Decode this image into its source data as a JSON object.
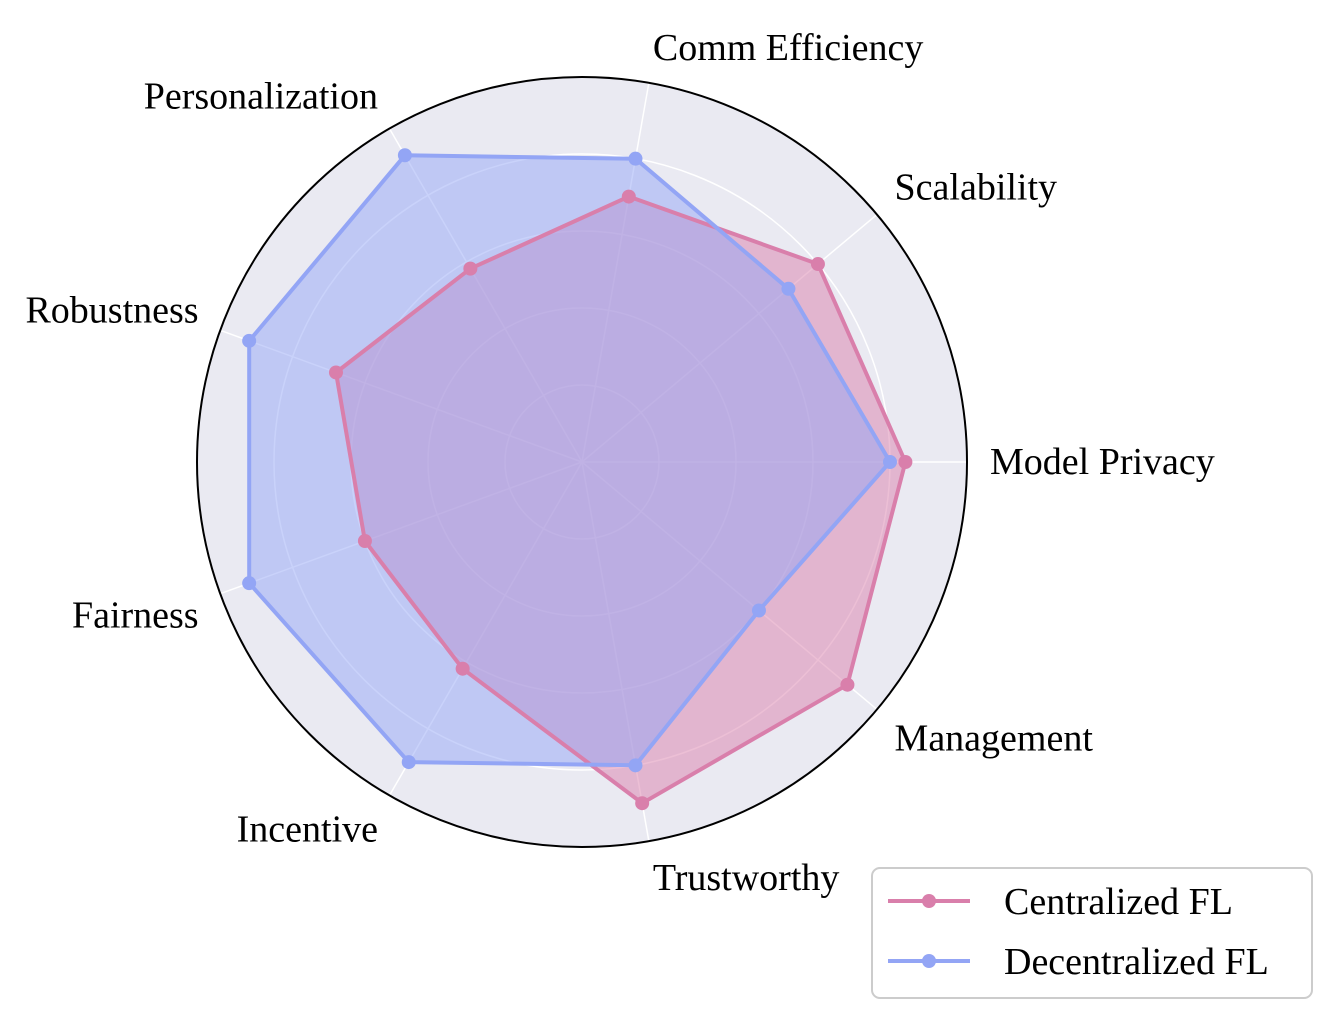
{
  "chart_data": {
    "type": "radar",
    "title": "",
    "categories": [
      "Model Privacy",
      "Scalability",
      "Comm Efficiency",
      "Personalization",
      "Robustness",
      "Fairness",
      "Incentive",
      "Trustworthy",
      "Management"
    ],
    "rlim": [
      0,
      5
    ],
    "rings": [
      1,
      2,
      3,
      4,
      5
    ],
    "grid": true,
    "legend_position": "bottom-right",
    "series": [
      {
        "name": "Centralized FL",
        "color": "#d97fab",
        "values": [
          4.2,
          4.0,
          3.5,
          2.9,
          3.4,
          3.0,
          3.1,
          4.5,
          4.5
        ]
      },
      {
        "name": "Decentralized FL",
        "color": "#93a5f5",
        "values": [
          4.0,
          3.5,
          4.0,
          4.6,
          4.6,
          4.6,
          4.5,
          4.0,
          3.0
        ]
      }
    ]
  }
}
